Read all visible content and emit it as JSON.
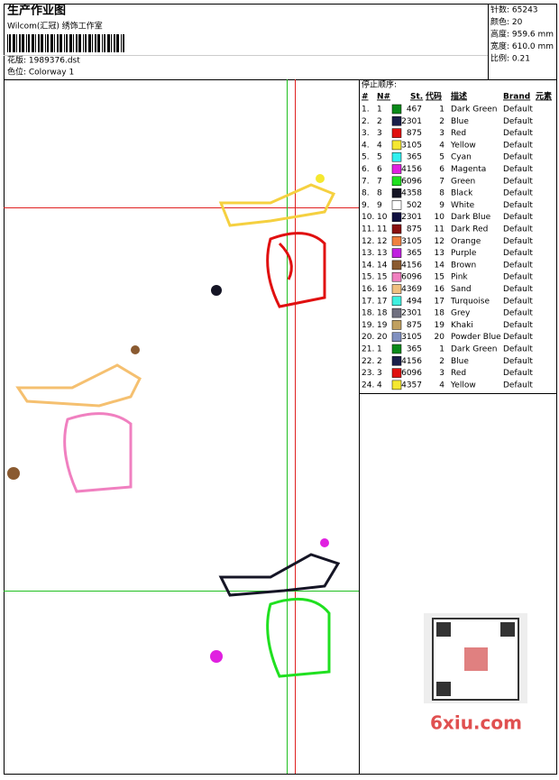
{
  "header": {
    "title": "生产作业图",
    "company": "Wilcom(汇冠) 绣饰工作室",
    "design": "花版: 1989376.dst",
    "colorway": "色位: Colorway 1"
  },
  "stats": [
    "针数: 65243",
    "颜色: 20",
    "高度: 959.6 mm",
    "宽度: 610.0 mm",
    "比例: 0.21"
  ],
  "sequence": {
    "title": "停止顺序:",
    "columns": [
      "#",
      "N#",
      "St.",
      "代码",
      "描述",
      "Brand",
      "元素"
    ],
    "rows": [
      [
        "1.",
        "1",
        "#0a8a1a",
        "467",
        "1",
        "Dark Green",
        "Default"
      ],
      [
        "2.",
        "2",
        "#1a1f4a",
        "2301",
        "2",
        "Blue",
        "Default"
      ],
      [
        "3.",
        "3",
        "#e01010",
        "875",
        "3",
        "Red",
        "Default"
      ],
      [
        "4.",
        "4",
        "#f5e830",
        "3105",
        "4",
        "Yellow",
        "Default"
      ],
      [
        "5.",
        "5",
        "#30f0f0",
        "365",
        "5",
        "Cyan",
        "Default"
      ],
      [
        "6.",
        "6",
        "#e020e0",
        "4156",
        "6",
        "Magenta",
        "Default"
      ],
      [
        "7.",
        "7",
        "#20e020",
        "6096",
        "7",
        "Green",
        "Default"
      ],
      [
        "8.",
        "8",
        "#151525",
        "4358",
        "8",
        "Black",
        "Default"
      ],
      [
        "9.",
        "9",
        "#ffffff",
        "502",
        "9",
        "White",
        "Default"
      ],
      [
        "10.",
        "10",
        "#101040",
        "2301",
        "10",
        "Dark Blue",
        "Default"
      ],
      [
        "11.",
        "11",
        "#8a1010",
        "875",
        "11",
        "Dark Red",
        "Default"
      ],
      [
        "12.",
        "12",
        "#f08040",
        "3105",
        "12",
        "Orange",
        "Default"
      ],
      [
        "13.",
        "13",
        "#c020e0",
        "365",
        "13",
        "Purple",
        "Default"
      ],
      [
        "14.",
        "14",
        "#8a5a30",
        "4156",
        "14",
        "Brown",
        "Default"
      ],
      [
        "15.",
        "15",
        "#f080c0",
        "6096",
        "15",
        "Pink",
        "Default"
      ],
      [
        "16.",
        "16",
        "#f0c080",
        "4369",
        "16",
        "Sand",
        "Default"
      ],
      [
        "17.",
        "17",
        "#40f0e0",
        "494",
        "17",
        "Turquoise",
        "Default"
      ],
      [
        "18.",
        "18",
        "#707080",
        "2301",
        "18",
        "Grey",
        "Default"
      ],
      [
        "19.",
        "19",
        "#c0a060",
        "875",
        "19",
        "Khaki",
        "Default"
      ],
      [
        "20.",
        "20",
        "#8090c0",
        "3105",
        "20",
        "Powder Blue",
        "Default"
      ],
      [
        "21.",
        "1",
        "#0a8a1a",
        "365",
        "1",
        "Dark Green",
        "Default"
      ],
      [
        "22.",
        "2",
        "#1a1f4a",
        "4156",
        "2",
        "Blue",
        "Default"
      ],
      [
        "23.",
        "3",
        "#e01010",
        "6096",
        "3",
        "Red",
        "Default"
      ],
      [
        "24.",
        "4",
        "#f5e830",
        "4357",
        "4",
        "Yellow",
        "Default"
      ]
    ]
  },
  "watermark": "6xiu.com"
}
